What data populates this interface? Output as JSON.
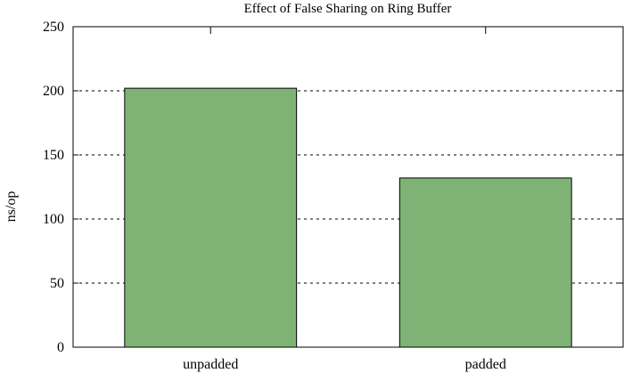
{
  "chart_data": {
    "type": "bar",
    "title": "Effect of False Sharing on Ring Buffer",
    "xlabel": "",
    "ylabel": "ns/op",
    "categories": [
      "unpadded",
      "padded"
    ],
    "values": [
      202,
      132
    ],
    "ylim": [
      0,
      250
    ],
    "yticks": [
      0,
      50,
      100,
      150,
      200,
      250
    ],
    "grid": "y-dashed",
    "legend": "none",
    "bar_color": "#7fb376",
    "bar_edge_color": "#000000"
  }
}
